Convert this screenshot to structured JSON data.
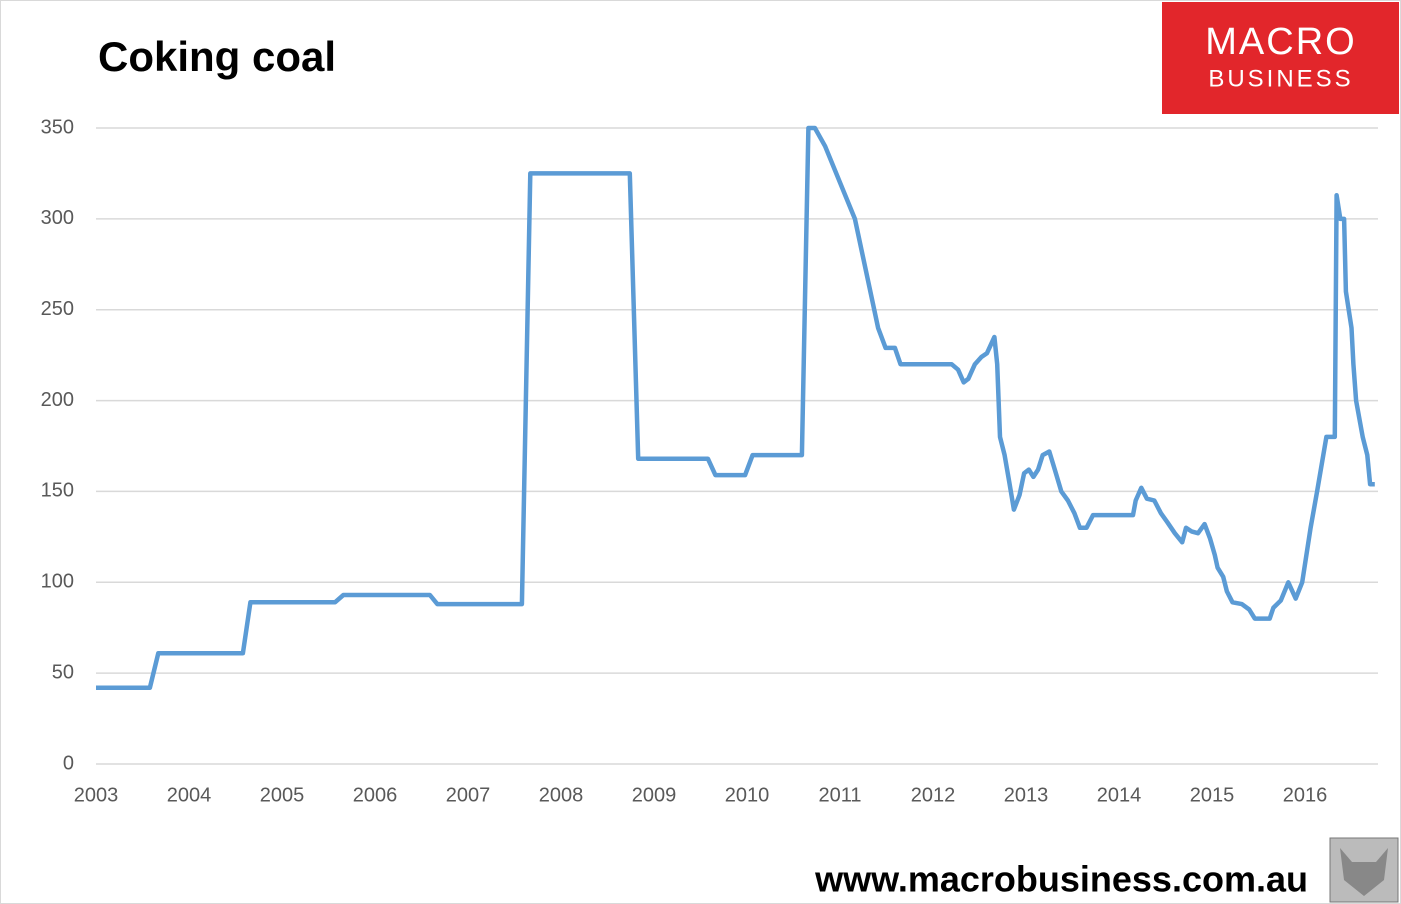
{
  "chart_data": {
    "type": "line",
    "title": "Coking coal",
    "logo": [
      "MACRO",
      "BUSINESS"
    ],
    "footer": "www.macrobusiness.com.au",
    "xlim": [
      2003,
      2016.8
    ],
    "xticks": [
      2003,
      2004,
      2005,
      2006,
      2007,
      2008,
      2009,
      2010,
      2011,
      2012,
      2013,
      2014,
      2015,
      2016
    ],
    "ylim": [
      0,
      350
    ],
    "yticks": [
      0,
      50,
      100,
      150,
      200,
      250,
      300,
      350
    ],
    "grid": true,
    "series": [
      {
        "color": "#5b9bd5",
        "x": [
          2003.0,
          2003.58,
          2003.67,
          2004.58,
          2004.66,
          2005.57,
          2005.66,
          2006.59,
          2006.67,
          2007.58,
          2007.67,
          2008.74,
          2008.83,
          2009.58,
          2009.66,
          2009.98,
          2010.06,
          2010.59,
          2010.66,
          2010.73,
          2010.84,
          2011.16,
          2011.41,
          2011.49,
          2011.59,
          2011.65,
          2012.2,
          2012.27,
          2012.33,
          2012.38,
          2012.45,
          2012.52,
          2012.58,
          2012.66,
          2012.69,
          2012.72,
          2012.77,
          2012.82,
          2012.87,
          2012.93,
          2012.98,
          2013.03,
          2013.08,
          2013.13,
          2013.18,
          2013.25,
          2013.31,
          2013.38,
          2013.45,
          2013.52,
          2013.58,
          2013.65,
          2013.72,
          2014.15,
          2014.18,
          2014.24,
          2014.3,
          2014.38,
          2014.45,
          2014.52,
          2014.6,
          2014.68,
          2014.72,
          2014.78,
          2014.85,
          2014.92,
          2014.98,
          2015.03,
          2015.06,
          2015.12,
          2015.16,
          2015.22,
          2015.32,
          2015.4,
          2015.46,
          2015.62,
          2015.66,
          2015.74,
          2015.82,
          2015.9,
          2015.97,
          2016.06,
          2016.13,
          2016.23,
          2016.32,
          2016.34,
          2016.38,
          2016.42,
          2016.44,
          2016.5,
          2016.52,
          2016.55,
          2016.62,
          2016.67,
          2016.7,
          2016.75
        ],
        "values": [
          42,
          42,
          61,
          61,
          89,
          89,
          93,
          93,
          88,
          88,
          325,
          325,
          168,
          168,
          159,
          159,
          170,
          170,
          350,
          350,
          340,
          300,
          240,
          229,
          229,
          220,
          220,
          217,
          210,
          212,
          220,
          224,
          226,
          235,
          220,
          180,
          170,
          155,
          140,
          148,
          160,
          162,
          158,
          162,
          170,
          172,
          162,
          150,
          145,
          138,
          130,
          130,
          137,
          137,
          145,
          152,
          146,
          145,
          138,
          133,
          127,
          122,
          130,
          128,
          127,
          132,
          124,
          115,
          108,
          103,
          95,
          89,
          88,
          85,
          80,
          80,
          86,
          90,
          100,
          91,
          100,
          130,
          150,
          180,
          180,
          313,
          300,
          300,
          260,
          240,
          220,
          200,
          180,
          170,
          154,
          154
        ]
      }
    ]
  }
}
